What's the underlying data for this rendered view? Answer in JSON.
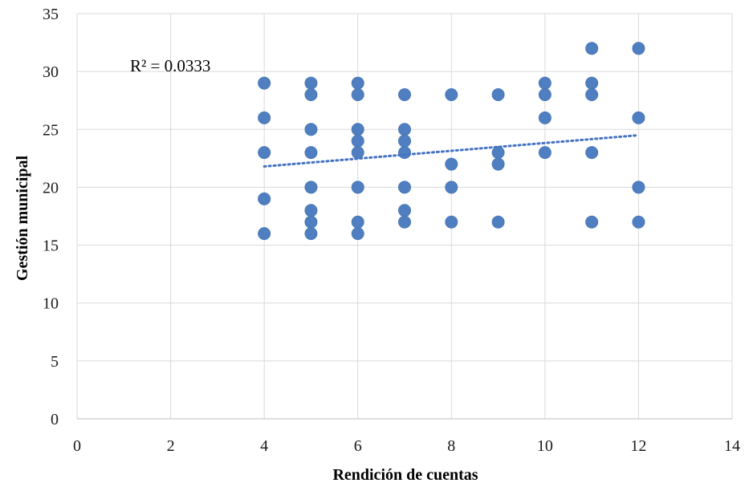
{
  "chart_data": {
    "type": "scatter",
    "title": "",
    "xlabel": "Rendición de cuentas",
    "ylabel": "Gestión municipal",
    "xlim": [
      0,
      14
    ],
    "ylim": [
      0,
      35
    ],
    "x_ticks": [
      0,
      2,
      4,
      6,
      8,
      10,
      12,
      14
    ],
    "y_ticks": [
      0,
      5,
      10,
      15,
      20,
      25,
      30,
      35
    ],
    "grid": true,
    "legend": "none",
    "annotation": "R² = 0.0333",
    "marker_color": "#4f7fc0",
    "trendline": {
      "type": "linear",
      "style": "dotted",
      "color": "#4472c4",
      "points": [
        [
          4,
          21.8
        ],
        [
          12,
          24.5
        ]
      ]
    },
    "series": [
      {
        "points": [
          [
            4,
            29
          ],
          [
            4,
            26
          ],
          [
            4,
            23
          ],
          [
            4,
            19
          ],
          [
            4,
            16
          ],
          [
            5,
            29
          ],
          [
            5,
            28
          ],
          [
            5,
            25
          ],
          [
            5,
            23
          ],
          [
            5,
            20
          ],
          [
            5,
            18
          ],
          [
            5,
            17
          ],
          [
            5,
            16
          ],
          [
            6,
            29
          ],
          [
            6,
            28
          ],
          [
            6,
            25
          ],
          [
            6,
            24
          ],
          [
            6,
            23
          ],
          [
            6,
            20
          ],
          [
            6,
            17
          ],
          [
            6,
            16
          ],
          [
            7,
            28
          ],
          [
            7,
            25
          ],
          [
            7,
            24
          ],
          [
            7,
            23
          ],
          [
            7,
            20
          ],
          [
            7,
            18
          ],
          [
            7,
            17
          ],
          [
            8,
            28
          ],
          [
            8,
            22
          ],
          [
            8,
            20
          ],
          [
            8,
            17
          ],
          [
            9,
            28
          ],
          [
            9,
            23
          ],
          [
            9,
            22
          ],
          [
            9,
            17
          ],
          [
            10,
            29
          ],
          [
            10,
            28
          ],
          [
            10,
            26
          ],
          [
            10,
            23
          ],
          [
            11,
            32
          ],
          [
            11,
            29
          ],
          [
            11,
            28
          ],
          [
            11,
            23
          ],
          [
            11,
            17
          ],
          [
            12,
            32
          ],
          [
            12,
            26
          ],
          [
            12,
            20
          ],
          [
            12,
            17
          ]
        ]
      }
    ]
  }
}
